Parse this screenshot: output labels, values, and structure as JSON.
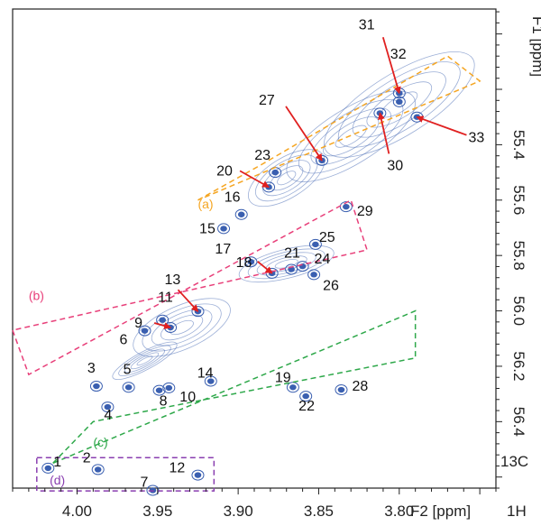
{
  "chart_data": {
    "type": "2D NMR contour spectrum (scatter of cross-peaks)",
    "x_axis": {
      "label": "F2 [ppm]",
      "nucleus_label": "1H",
      "range": [
        4.04,
        3.74
      ],
      "reversed": true,
      "ticks": [
        4.0,
        3.95,
        3.9,
        3.85,
        3.8
      ],
      "tick_labels": [
        "4.00",
        "3.95",
        "3.90",
        "3.85",
        "3.80"
      ]
    },
    "y_axis": {
      "label": "F1 [ppm]",
      "nucleus_label": "13C",
      "range": [
        54.91,
        56.64
      ],
      "reversed": true,
      "side": "right",
      "ticks": [
        55.4,
        55.6,
        55.8,
        56.0,
        56.2,
        56.4
      ],
      "tick_labels": [
        "55.4",
        "55.6",
        "55.8",
        "56.0",
        "56.2",
        "56.4"
      ]
    },
    "grid": false,
    "contour_color": "#3a5fb0",
    "regions": [
      {
        "label": "(a)",
        "color": "#f5a623",
        "corners": [
          [
            3.925,
            55.6
          ],
          [
            3.885,
            55.47
          ],
          [
            3.77,
            55.08
          ],
          [
            3.75,
            55.17
          ],
          [
            3.925,
            55.6
          ]
        ]
      },
      {
        "label": "(b)",
        "color": "#e8407a",
        "corners": [
          [
            4.04,
            56.07
          ],
          [
            4.03,
            56.23
          ],
          [
            3.83,
            55.6
          ],
          [
            3.82,
            55.78
          ],
          [
            4.04,
            56.07
          ]
        ]
      },
      {
        "label": "(c)",
        "color": "#2ea84a",
        "corners": [
          [
            4.015,
            56.55
          ],
          [
            3.99,
            56.4
          ],
          [
            3.79,
            56.17
          ],
          [
            3.79,
            56.0
          ],
          [
            4.015,
            56.55
          ]
        ]
      },
      {
        "label": "(d)",
        "color": "#8a3fb0",
        "corners": [
          [
            4.025,
            56.53
          ],
          [
            3.915,
            56.53
          ],
          [
            3.915,
            56.65
          ],
          [
            4.025,
            56.65
          ],
          [
            4.025,
            56.53
          ]
        ]
      }
    ],
    "peaks": [
      {
        "label": "1",
        "x": 4.018,
        "y": 56.568
      },
      {
        "label": "2",
        "x": 3.987,
        "y": 56.573
      },
      {
        "label": "3",
        "x": 3.988,
        "y": 56.272
      },
      {
        "label": "4",
        "x": 3.981,
        "y": 56.347
      },
      {
        "label": "5",
        "x": 3.968,
        "y": 56.276
      },
      {
        "label": "6",
        "x": 3.958,
        "y": 56.072
      },
      {
        "label": "7",
        "x": 3.953,
        "y": 56.648
      },
      {
        "label": "8",
        "x": 3.949,
        "y": 56.287
      },
      {
        "label": "9",
        "x": 3.942,
        "y": 56.06
      },
      {
        "label": "10",
        "x": 3.943,
        "y": 56.278
      },
      {
        "label": "11",
        "x": 3.947,
        "y": 56.033
      },
      {
        "label": "12",
        "x": 3.925,
        "y": 56.593
      },
      {
        "label": "13",
        "x": 3.925,
        "y": 56.002
      },
      {
        "label": "14",
        "x": 3.917,
        "y": 56.254
      },
      {
        "label": "15",
        "x": 3.909,
        "y": 55.703
      },
      {
        "label": "16",
        "x": 3.898,
        "y": 55.652
      },
      {
        "label": "17",
        "x": 3.892,
        "y": 55.823
      },
      {
        "label": "18",
        "x": 3.879,
        "y": 55.864
      },
      {
        "label": "19",
        "x": 3.866,
        "y": 56.276
      },
      {
        "label": "20",
        "x": 3.881,
        "y": 55.553
      },
      {
        "label": "21",
        "x": 3.867,
        "y": 55.85
      },
      {
        "label": "22",
        "x": 3.858,
        "y": 56.308
      },
      {
        "label": "23",
        "x": 3.877,
        "y": 55.5
      },
      {
        "label": "24",
        "x": 3.86,
        "y": 55.839
      },
      {
        "label": "25",
        "x": 3.852,
        "y": 55.76
      },
      {
        "label": "26",
        "x": 3.853,
        "y": 55.869
      },
      {
        "label": "27",
        "x": 3.848,
        "y": 55.457
      },
      {
        "label": "28",
        "x": 3.836,
        "y": 56.285
      },
      {
        "label": "29",
        "x": 3.833,
        "y": 55.624
      },
      {
        "label": "30",
        "x": 3.812,
        "y": 55.286
      },
      {
        "label": "31",
        "x": 3.8,
        "y": 55.214
      },
      {
        "label": "32",
        "x": 3.8,
        "y": 55.245
      },
      {
        "label": "33",
        "x": 3.789,
        "y": 55.3
      }
    ]
  }
}
